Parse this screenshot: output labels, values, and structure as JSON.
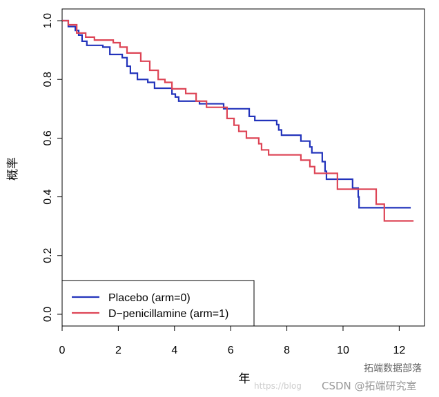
{
  "chart_data": {
    "type": "line",
    "step": true,
    "title": "",
    "xlabel": "年",
    "ylabel": "概率",
    "xlim": [
      0,
      12.9
    ],
    "ylim": [
      -0.04,
      1.04
    ],
    "xticks": [
      0,
      2,
      4,
      6,
      8,
      10,
      12
    ],
    "yticks": [
      0.0,
      0.2,
      0.4,
      0.6,
      0.8,
      1.0
    ],
    "xtick_labels": [
      "0",
      "2",
      "4",
      "6",
      "8",
      "10",
      "12"
    ],
    "ytick_labels": [
      "0.0",
      "0.2",
      "0.4",
      "0.6",
      "0.8",
      "1.0"
    ],
    "grid": false,
    "legend_position": "bottom-left",
    "series": [
      {
        "name": "Placebo (arm=0)",
        "color": "#2233bb",
        "x": [
          0,
          0.22,
          0.47,
          0.59,
          0.71,
          0.88,
          1.45,
          1.7,
          2.14,
          2.31,
          2.43,
          2.68,
          3.05,
          3.29,
          3.91,
          4.03,
          4.15,
          4.89,
          5.75,
          6.66,
          6.86,
          7.64,
          7.71,
          7.81,
          8.5,
          8.82,
          8.89,
          9.26,
          9.36,
          9.41,
          10.34,
          10.54,
          10.57,
          12.41
        ],
        "y": [
          1.0,
          0.98,
          0.967,
          0.951,
          0.93,
          0.916,
          0.91,
          0.885,
          0.874,
          0.845,
          0.821,
          0.8,
          0.79,
          0.77,
          0.75,
          0.74,
          0.726,
          0.717,
          0.7,
          0.674,
          0.66,
          0.646,
          0.628,
          0.61,
          0.59,
          0.57,
          0.55,
          0.52,
          0.487,
          0.46,
          0.43,
          0.4,
          0.363,
          0.363
        ]
      },
      {
        "name": "D−penicillamine (arm=1)",
        "color": "#dd4455",
        "x": [
          0,
          0.22,
          0.52,
          0.84,
          1.15,
          1.82,
          2.06,
          2.31,
          2.8,
          3.12,
          3.42,
          3.66,
          3.91,
          4.4,
          4.77,
          5.14,
          5.87,
          6.12,
          6.29,
          6.56,
          7.0,
          7.1,
          7.35,
          8.5,
          8.82,
          8.99,
          9.8,
          11.18,
          11.47,
          12.51
        ],
        "y": [
          1.0,
          0.986,
          0.958,
          0.944,
          0.934,
          0.925,
          0.91,
          0.89,
          0.862,
          0.831,
          0.8,
          0.79,
          0.768,
          0.752,
          0.726,
          0.705,
          0.667,
          0.644,
          0.623,
          0.6,
          0.581,
          0.56,
          0.543,
          0.525,
          0.503,
          0.48,
          0.426,
          0.375,
          0.318,
          0.318
        ]
      }
    ]
  },
  "watermarks": {
    "wechat": "拓端数据部落",
    "url": "https://blog",
    "csdn": "CSDN @拓端研究室"
  }
}
